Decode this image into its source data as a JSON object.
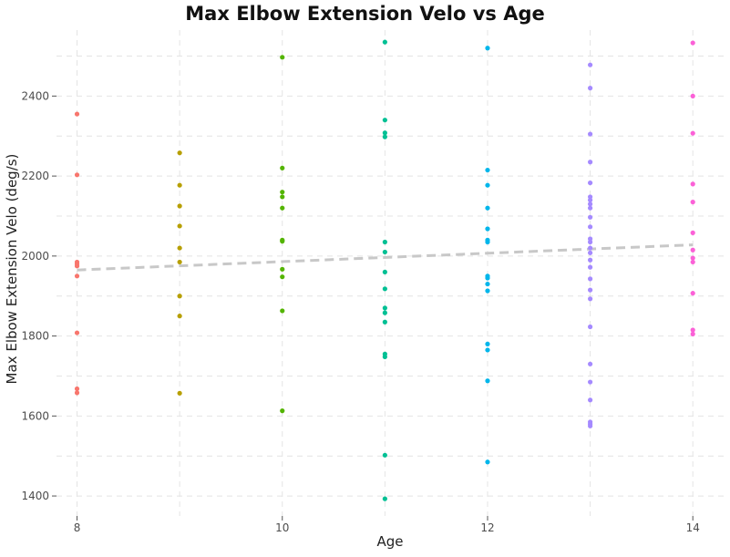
{
  "chart_data": {
    "type": "scatter",
    "title": "Max Elbow Extension Velo vs Age",
    "xlabel": "Age",
    "ylabel": "Max Elbow Extension Velo (deg/s)",
    "xlim": [
      7.8,
      14.3
    ],
    "ylim": [
      1350,
      2565
    ],
    "x_ticks": [
      8,
      10,
      12,
      14
    ],
    "y_ticks": [
      1400,
      1600,
      1800,
      2000,
      2200,
      2400
    ],
    "grid": true,
    "legend": "none",
    "trend_line": {
      "style": "dashed",
      "color": "#c8c8c8",
      "points": [
        [
          8,
          1965
        ],
        [
          14,
          2028
        ]
      ]
    },
    "series": [
      {
        "age": 8,
        "color": "#F8766D",
        "values": [
          2355,
          2203,
          1985,
          1980,
          1975,
          1950,
          1808,
          1668,
          1658
        ]
      },
      {
        "age": 9,
        "color": "#B79F00",
        "values": [
          2258,
          2177,
          2125,
          2075,
          2020,
          1985,
          1900,
          1850,
          1657
        ]
      },
      {
        "age": 10,
        "color": "#53B400",
        "values": [
          2497,
          2220,
          2160,
          2148,
          2120,
          2040,
          2037,
          1967,
          1948,
          1863,
          1613
        ]
      },
      {
        "age": 11,
        "color": "#00C094",
        "values": [
          2535,
          2340,
          2308,
          2298,
          2035,
          2010,
          1960,
          1918,
          1870,
          1858,
          1835,
          1755,
          1748,
          1502,
          1393
        ]
      },
      {
        "age": 12,
        "color": "#00B6EB",
        "values": [
          2520,
          2215,
          2177,
          2120,
          2068,
          2040,
          2035,
          1950,
          1945,
          1930,
          1913,
          1780,
          1765,
          1688,
          1485
        ]
      },
      {
        "age": 13,
        "color": "#A58AFF",
        "values": [
          2478,
          2420,
          2305,
          2235,
          2183,
          2148,
          2140,
          2130,
          2120,
          2097,
          2073,
          2043,
          2035,
          2020,
          2008,
          1990,
          1972,
          1943,
          1915,
          1893,
          1823,
          1730,
          1685,
          1640,
          1585,
          1580,
          1575
        ]
      },
      {
        "age": 14,
        "color": "#FB61D7",
        "values": [
          2533,
          2400,
          2307,
          2180,
          2135,
          2058,
          2015,
          1995,
          1985,
          1907,
          1815,
          1805
        ]
      }
    ]
  }
}
